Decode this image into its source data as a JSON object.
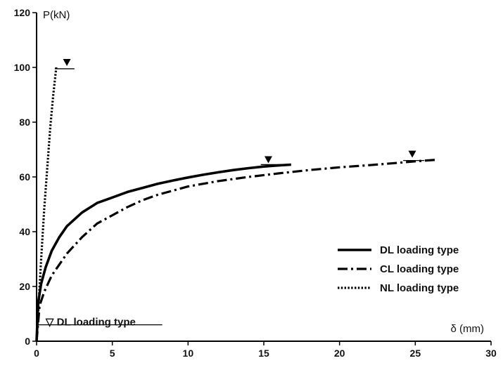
{
  "chart_data": {
    "type": "line",
    "title": "",
    "xlabel": "δ (mm)",
    "ylabel": "P(kN)",
    "xlim": [
      0,
      30
    ],
    "ylim": [
      0,
      120
    ],
    "x_ticks": [
      0,
      5,
      10,
      15,
      20,
      25,
      30
    ],
    "y_ticks": [
      0,
      20,
      40,
      60,
      80,
      100,
      120
    ],
    "grid": false,
    "legend_position": "right",
    "series": [
      {
        "name": "DL loading type",
        "style": "solid",
        "color": "#000000",
        "x": [
          0,
          0.1,
          0.3,
          0.6,
          1.0,
          1.5,
          2.0,
          3.0,
          4.0,
          5.0,
          6.0,
          7.0,
          8.0,
          9.0,
          10.0,
          11.0,
          12.0,
          13.0,
          14.0,
          15.0,
          16.0,
          16.8
        ],
        "y": [
          0,
          14,
          21,
          27,
          33,
          38,
          42,
          47,
          50.5,
          52.5,
          54.5,
          56,
          57.5,
          58.7,
          59.8,
          60.8,
          61.7,
          62.5,
          63.2,
          63.8,
          64.2,
          64.5
        ],
        "ultimate_marker": {
          "x": 15.3,
          "y": 64.5
        }
      },
      {
        "name": "CL loading type",
        "style": "dash-dot",
        "color": "#000000",
        "x": [
          0,
          0.2,
          0.5,
          1.0,
          1.5,
          2.0,
          3.0,
          4.0,
          5.0,
          6.0,
          7.0,
          8.0,
          10.0,
          12.0,
          14.0,
          16.0,
          18.0,
          20.0,
          22.0,
          24.0,
          25.0,
          26.5
        ],
        "y": [
          0,
          13,
          18,
          24,
          28,
          32,
          38,
          43,
          46,
          49,
          51.5,
          53.5,
          56.5,
          58.5,
          60,
          61.3,
          62.5,
          63.5,
          64.3,
          65.2,
          65.7,
          66.3
        ],
        "ultimate_marker": {
          "x": 24.8,
          "y": 66.5
        }
      },
      {
        "name": "NL loading type",
        "style": "dotted",
        "color": "#000000",
        "x": [
          0,
          0.15,
          0.3,
          0.5,
          0.7,
          0.9,
          1.1,
          1.3
        ],
        "y": [
          0,
          15,
          30,
          48,
          63,
          78,
          90,
          100
        ],
        "ultimate_marker": {
          "x": 2.0,
          "y": 100
        }
      }
    ],
    "legend": [
      {
        "label": "DL loading type",
        "style": "solid"
      },
      {
        "label": "CL loading type",
        "style": "dash-dot"
      },
      {
        "label": "NL loading type",
        "style": "dotted"
      }
    ],
    "annotations": [
      {
        "text": "▽ DL loading type",
        "baseline_value": 6,
        "x_from": 0,
        "x_to": 8.3
      }
    ],
    "ultimate_reference_lines": [
      {
        "x_from": 1.2,
        "x_to": 2.5,
        "y": 99.5
      },
      {
        "x_from": 14.8,
        "x_to": 16.3,
        "y": 64.5
      },
      {
        "x_from": 24.2,
        "x_to": 25.6,
        "y": 66
      }
    ]
  }
}
